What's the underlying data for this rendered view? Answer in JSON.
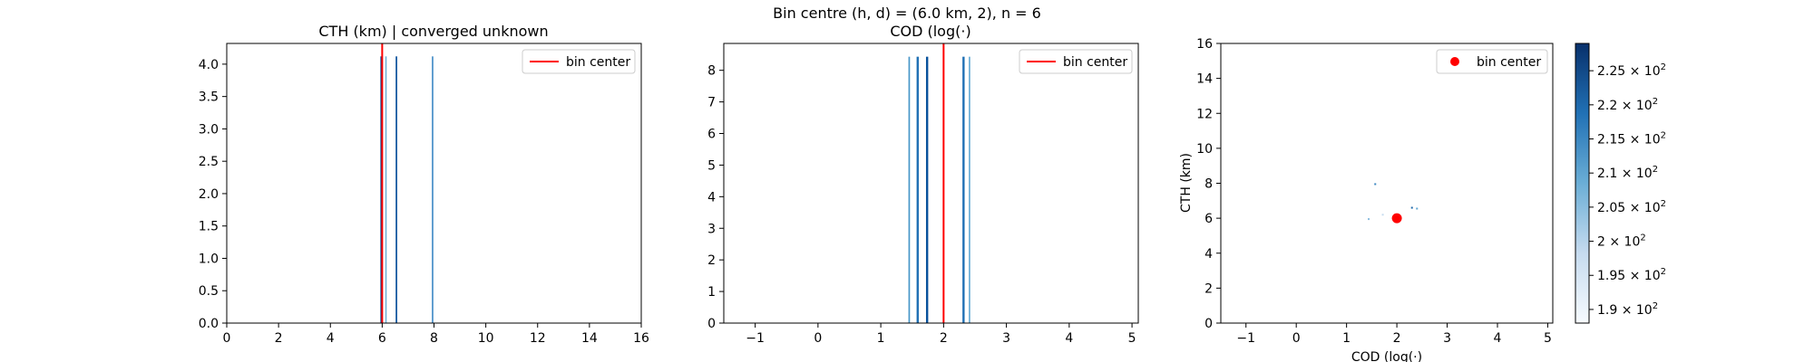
{
  "suptitle": "Bin centre (h, d) = (6.0 km, 2), n = 6",
  "chart_data": [
    {
      "type": "histogram",
      "title": "CTH (km) | converged unknown",
      "xlabel": "",
      "ylabel": "",
      "xlim": [
        0,
        16
      ],
      "ylim": [
        0,
        4.32
      ],
      "xticks": [
        "0",
        "2",
        "4",
        "6",
        "8",
        "10",
        "12",
        "14",
        "16"
      ],
      "yticks": [
        "0.0",
        "0.5",
        "1.0",
        "1.5",
        "2.0",
        "2.5",
        "3.0",
        "3.5",
        "4.0"
      ],
      "bars": [
        {
          "x": 5.93,
          "width": 0.05,
          "height": 4.12,
          "color": "#084a91"
        },
        {
          "x": 6.12,
          "width": 0.05,
          "height": 4.12,
          "color": "#6aaed6"
        },
        {
          "x": 6.52,
          "width": 0.06,
          "height": 4.12,
          "color": "#08519c"
        },
        {
          "x": 7.92,
          "width": 0.05,
          "height": 4.12,
          "color": "#2f7fc1"
        }
      ],
      "vline": {
        "x": 6.0,
        "color": "#ff0000"
      },
      "legend": {
        "label": "bin center",
        "position": "upper-right"
      }
    },
    {
      "type": "histogram",
      "title": "COD (log(·)",
      "xlabel": "",
      "ylabel": "",
      "xlim": [
        -1.5,
        5.1
      ],
      "ylim": [
        0,
        8.85
      ],
      "xticks": [
        "−1",
        "0",
        "1",
        "2",
        "3",
        "4",
        "5"
      ],
      "yticks": [
        "0",
        "1",
        "2",
        "3",
        "4",
        "5",
        "6",
        "7",
        "8"
      ],
      "bars": [
        {
          "x": 1.44,
          "width": 0.025,
          "height": 8.43,
          "color": "#4a98c9"
        },
        {
          "x": 1.57,
          "width": 0.035,
          "height": 8.43,
          "color": "#2171b5"
        },
        {
          "x": 1.72,
          "width": 0.035,
          "height": 8.43,
          "color": "#08519c"
        },
        {
          "x": 2.3,
          "width": 0.035,
          "height": 8.43,
          "color": "#2171b5"
        },
        {
          "x": 2.4,
          "width": 0.025,
          "height": 8.43,
          "color": "#6aaed6"
        }
      ],
      "vline": {
        "x": 2.0,
        "color": "#ff0000"
      },
      "legend": {
        "label": "bin center",
        "position": "upper-right"
      }
    },
    {
      "type": "heatmap",
      "title": "",
      "xlabel": "COD (log(·)",
      "ylabel": "CTH (km)",
      "xlim": [
        -1.5,
        5.1
      ],
      "ylim": [
        0,
        16
      ],
      "xticks": [
        "−1",
        "0",
        "1",
        "2",
        "3",
        "4",
        "5"
      ],
      "yticks": [
        "0",
        "2",
        "4",
        "6",
        "8",
        "10",
        "12",
        "14",
        "16"
      ],
      "cells": [
        {
          "x": 1.57,
          "y": 7.95,
          "value": 215
        },
        {
          "x": 1.44,
          "y": 5.95,
          "value": 205
        },
        {
          "x": 1.72,
          "y": 6.2,
          "value": 198
        },
        {
          "x": 2.3,
          "y": 6.6,
          "value": 220
        },
        {
          "x": 2.4,
          "y": 6.55,
          "value": 210
        }
      ],
      "marker": {
        "x": 2.0,
        "y": 6.0,
        "color": "#ff0000"
      },
      "legend": {
        "label": "bin center",
        "position": "upper-right"
      },
      "colorbar": {
        "range": [
          188,
          229
        ],
        "ticks": [
          {
            "value": 190,
            "base": "1.9 × 10",
            "exp": "2"
          },
          {
            "value": 195,
            "base": "1.95 × 10",
            "exp": "2"
          },
          {
            "value": 200,
            "base": "2 × 10",
            "exp": "2"
          },
          {
            "value": 205,
            "base": "2.05 × 10",
            "exp": "2"
          },
          {
            "value": 210,
            "base": "2.1 × 10",
            "exp": "2"
          },
          {
            "value": 215,
            "base": "2.15 × 10",
            "exp": "2"
          },
          {
            "value": 220,
            "base": "2.2 × 10",
            "exp": "2"
          },
          {
            "value": 225,
            "base": "2.25 × 10",
            "exp": "2"
          }
        ],
        "colors": [
          "#f7fbff",
          "#c6dbef",
          "#6baed6",
          "#2171b5",
          "#08306b"
        ]
      }
    }
  ]
}
